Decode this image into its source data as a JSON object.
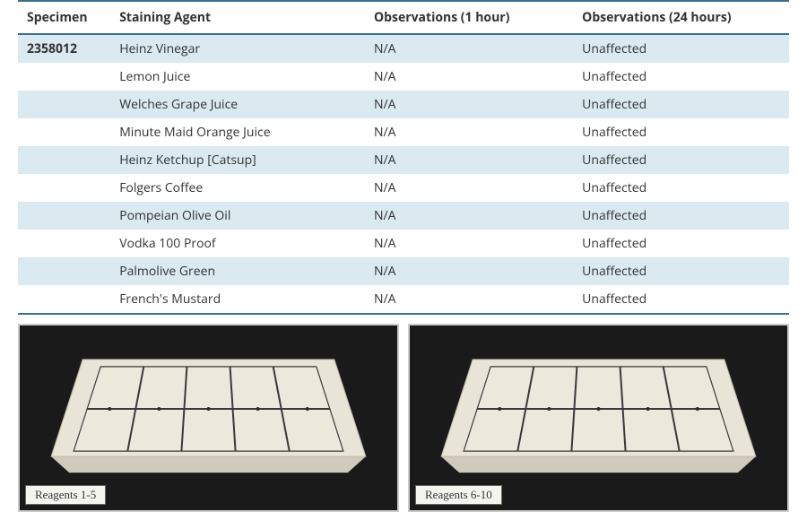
{
  "table": {
    "columns": [
      "Specimen",
      "Staining Agent",
      "Observations (1 hour)",
      "Observations (24 hours)"
    ],
    "specimen_id": "2358012",
    "rows": [
      {
        "agent": "Heinz Vinegar",
        "obs1": "N/A",
        "obs24": "Unaffected"
      },
      {
        "agent": "Lemon Juice",
        "obs1": "N/A",
        "obs24": "Unaffected"
      },
      {
        "agent": "Welches Grape Juice",
        "obs1": "N/A",
        "obs24": "Unaffected"
      },
      {
        "agent": "Minute Maid Orange Juice",
        "obs1": "N/A",
        "obs24": "Unaffected"
      },
      {
        "agent": "Heinz Ketchup [Catsup]",
        "obs1": "N/A",
        "obs24": "Unaffected"
      },
      {
        "agent": "Folgers Coffee",
        "obs1": "N/A",
        "obs24": "Unaffected"
      },
      {
        "agent": "Pompeian Olive Oil",
        "obs1": "N/A",
        "obs24": "Unaffected"
      },
      {
        "agent": "Vodka 100 Proof",
        "obs1": "N/A",
        "obs24": "Unaffected"
      },
      {
        "agent": "Palmolive Green",
        "obs1": "N/A",
        "obs24": "Unaffected"
      },
      {
        "agent": "French's Mustard",
        "obs1": "N/A",
        "obs24": "Unaffected"
      }
    ],
    "header_border_color": "#3a6f8f",
    "alt_row_color": "#dbe9f1",
    "font_size": 14
  },
  "photos": {
    "left_caption": "Reagents 1-5",
    "right_caption": "Reagents 6-10",
    "bg_color": "#1a1a1a",
    "board_fill": "#e8e4d8",
    "board_edge": "#d5d0c0",
    "grid_color": "#3a3a3a",
    "caption_bg": "#f5f5f0",
    "caption_border": "#666666"
  }
}
